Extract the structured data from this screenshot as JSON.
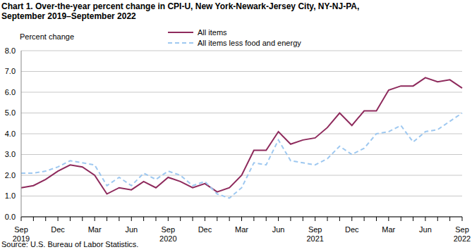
{
  "chart_data": {
    "type": "line",
    "title": "Chart 1. Over-the-year percent change in CPI-U, New York-Newark-Jersey City, NY-NJ-PA,\nSeptember 2019–September 2022",
    "y_label": "Percent change",
    "source": "Source: U.S. Bureau of Labor Statistics.",
    "categories": [
      "Sep 2019",
      null,
      null,
      "Dec",
      null,
      null,
      "Mar",
      null,
      null,
      "Jun",
      null,
      null,
      "Sep 2020",
      null,
      null,
      "Dec",
      null,
      null,
      "Mar",
      null,
      null,
      "Jun",
      null,
      null,
      "Sep 2021",
      null,
      null,
      "Dec",
      null,
      null,
      "Mar",
      null,
      null,
      "Jun",
      null,
      null,
      "Sep 2022"
    ],
    "series": [
      {
        "name": "All items",
        "color": "#8e2a5c",
        "line_style": "solid",
        "values": [
          1.4,
          1.5,
          1.8,
          2.2,
          2.5,
          2.4,
          2.0,
          1.1,
          1.4,
          1.3,
          1.7,
          1.4,
          1.9,
          1.7,
          1.4,
          1.6,
          1.2,
          1.4,
          2.0,
          3.2,
          3.2,
          4.1,
          3.5,
          3.7,
          3.8,
          4.3,
          5.0,
          4.4,
          5.1,
          5.1,
          6.1,
          6.3,
          6.3,
          6.7,
          6.5,
          6.6,
          6.2
        ]
      },
      {
        "name": "All items less food and energy",
        "color": "#9ec8f0",
        "line_style": "dashed",
        "values": [
          2.1,
          2.1,
          2.2,
          2.4,
          2.7,
          2.6,
          2.5,
          1.5,
          1.9,
          1.5,
          2.1,
          1.8,
          2.2,
          2.0,
          1.5,
          1.7,
          1.1,
          0.9,
          1.4,
          2.6,
          2.5,
          3.7,
          2.7,
          2.6,
          2.5,
          2.8,
          3.4,
          3.0,
          3.3,
          4.0,
          4.1,
          4.4,
          3.6,
          4.1,
          4.2,
          4.6,
          5.0
        ]
      }
    ],
    "ylim": [
      0,
      8
    ],
    "yticks": [
      {
        "value": 0,
        "label": "0.0"
      },
      {
        "value": 1,
        "label": "1.0"
      },
      {
        "value": 2,
        "label": "2.0"
      },
      {
        "value": 3,
        "label": "3.0"
      },
      {
        "value": 4,
        "label": "4.0"
      },
      {
        "value": 5,
        "label": "5.0"
      },
      {
        "value": 6,
        "label": "6.0"
      },
      {
        "value": 7,
        "label": "7.0"
      },
      {
        "value": 8,
        "label": "8.0"
      }
    ],
    "grid": true,
    "legend": "top"
  }
}
